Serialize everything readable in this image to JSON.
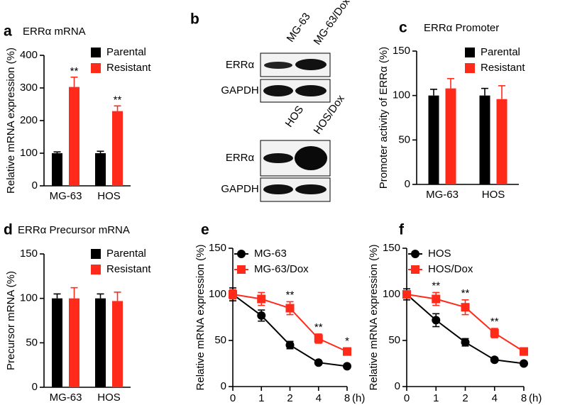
{
  "chart_data": [
    {
      "type": "bar",
      "panel": "a",
      "title": "ERRα mRNA",
      "ylabel": "Relative mRNA expression (%)",
      "categories": [
        "MG-63",
        "HOS"
      ],
      "ylim": [
        0,
        400
      ],
      "yticks": [
        0,
        100,
        200,
        300,
        400
      ],
      "series": [
        {
          "name": "Parental",
          "color": "#000000",
          "values": [
            100,
            100
          ],
          "errors": [
            4,
            6
          ]
        },
        {
          "name": "Resistant",
          "color": "#ff2a1a",
          "values": [
            303,
            229
          ],
          "errors": [
            30,
            16
          ],
          "significance": [
            "**",
            "**"
          ]
        }
      ]
    },
    {
      "type": "bar",
      "panel": "c",
      "title": "ERRα Promoter",
      "ylabel": "Promoter activity of ERRα (%)",
      "categories": [
        "MG-63",
        "HOS"
      ],
      "ylim": [
        0,
        150
      ],
      "yticks": [
        0,
        50,
        100,
        150
      ],
      "series": [
        {
          "name": "Parental",
          "color": "#000000",
          "values": [
            100,
            100
          ],
          "errors": [
            7,
            8
          ]
        },
        {
          "name": "Resistant",
          "color": "#ff2a1a",
          "values": [
            108,
            96
          ],
          "errors": [
            11,
            15
          ]
        }
      ]
    },
    {
      "type": "bar",
      "panel": "d",
      "title": "ERRα Precursor mRNA",
      "ylabel": "Precursor mRNA (%)",
      "categories": [
        "MG-63",
        "HOS"
      ],
      "ylim": [
        0,
        150
      ],
      "yticks": [
        0,
        50,
        100,
        150
      ],
      "series": [
        {
          "name": "Parental",
          "color": "#000000",
          "values": [
            100,
            100
          ],
          "errors": [
            5,
            5
          ]
        },
        {
          "name": "Resistant",
          "color": "#ff2a1a",
          "values": [
            100,
            97
          ],
          "errors": [
            12,
            10
          ]
        }
      ]
    },
    {
      "type": "line",
      "panel": "e",
      "ylabel": "Relative mRNA expression (%)",
      "xunit": "(h)",
      "categories": [
        "0",
        "1",
        "2",
        "4",
        "8"
      ],
      "ylim": [
        0,
        150
      ],
      "yticks": [
        0,
        50,
        100,
        150
      ],
      "series": [
        {
          "name": "MG-63",
          "color": "#000000",
          "marker": "circle",
          "values": [
            100,
            77,
            45,
            26,
            22
          ],
          "errors": [
            7,
            6,
            4,
            2,
            2
          ]
        },
        {
          "name": "MG-63/Dox",
          "color": "#ff2a1a",
          "marker": "square",
          "values": [
            100,
            95,
            85,
            52,
            38
          ],
          "errors": [
            5,
            7,
            7,
            5,
            4
          ],
          "significance": [
            null,
            null,
            "**",
            "**",
            "*"
          ]
        }
      ]
    },
    {
      "type": "line",
      "panel": "f",
      "ylabel": "Relative mRNA expression (%)",
      "xunit": "(h)",
      "categories": [
        "0",
        "1",
        "2",
        "4",
        "8"
      ],
      "ylim": [
        0,
        150
      ],
      "yticks": [
        0,
        50,
        100,
        150
      ],
      "series": [
        {
          "name": "HOS",
          "color": "#000000",
          "marker": "circle",
          "values": [
            100,
            72,
            48,
            29,
            25
          ],
          "errors": [
            6,
            7,
            4,
            2,
            2
          ]
        },
        {
          "name": "HOS/Dox",
          "color": "#ff2a1a",
          "marker": "square",
          "values": [
            100,
            95,
            86,
            58,
            38
          ],
          "errors": [
            4,
            7,
            8,
            5,
            4
          ],
          "significance": [
            null,
            "**",
            "**",
            "**",
            null
          ]
        }
      ]
    }
  ],
  "blot": {
    "panel": "b",
    "groups": [
      {
        "lanes": [
          "MG-63",
          "MG-63/Dox"
        ],
        "rows": [
          "ERRα",
          "GAPDH"
        ]
      },
      {
        "lanes": [
          "HOS",
          "HOS/Dox"
        ],
        "rows": [
          "ERRα",
          "GAPDH"
        ]
      }
    ]
  }
}
